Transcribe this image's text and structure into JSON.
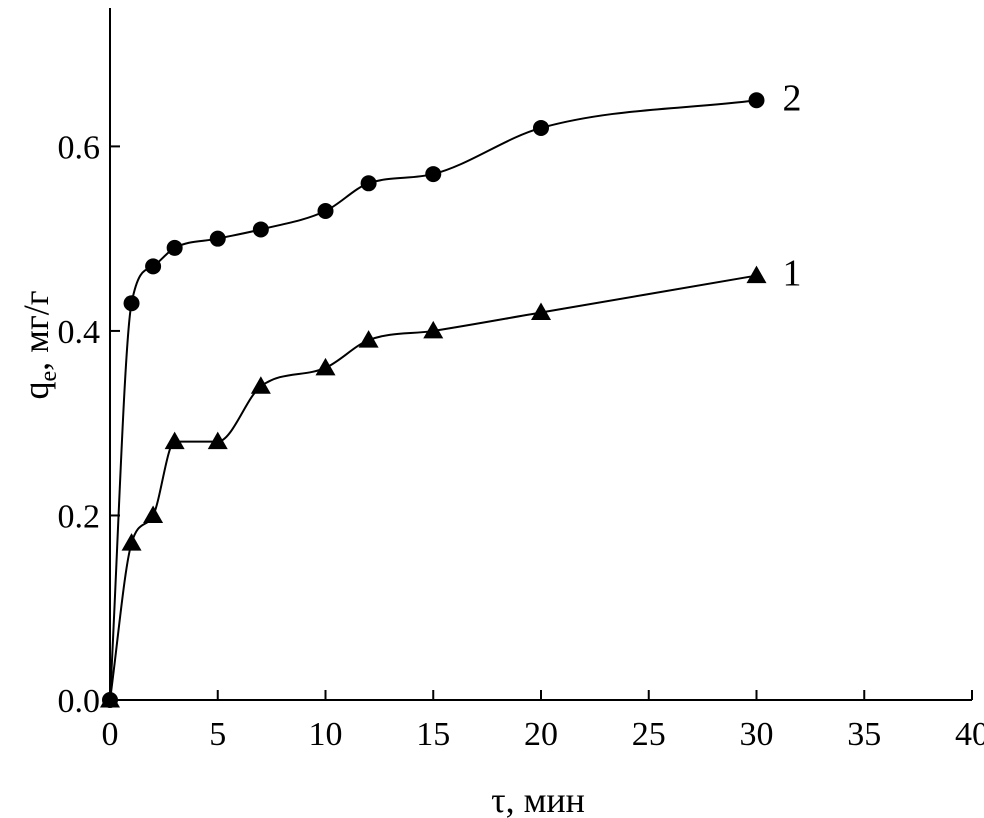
{
  "chart_data": {
    "type": "line",
    "xlabel": "τ, мин",
    "ylabel_main": "q",
    "ylabel_sub": "e",
    "ylabel_rest": ", мг/г",
    "xlim": [
      0,
      40
    ],
    "ylim": [
      0,
      0.75
    ],
    "x_ticks": [
      0,
      5,
      10,
      15,
      20,
      25,
      30,
      35,
      40
    ],
    "x_tick_labels": [
      "0",
      "5",
      "10",
      "15",
      "20",
      "25",
      "30",
      "35",
      "40"
    ],
    "y_ticks": [
      0,
      0.2,
      0.4,
      0.6
    ],
    "y_tick_labels": [
      "0.0",
      "0.2",
      "0.4",
      "0.6"
    ],
    "grid": false,
    "series": [
      {
        "name": "1",
        "marker": "triangle",
        "x": [
          0,
          1,
          2,
          3,
          5,
          7,
          10,
          12,
          15,
          20,
          30
        ],
        "y": [
          0,
          0.17,
          0.2,
          0.28,
          0.28,
          0.34,
          0.36,
          0.39,
          0.4,
          0.42,
          0.46
        ]
      },
      {
        "name": "2",
        "marker": "circle",
        "x": [
          0,
          1,
          2,
          3,
          5,
          7,
          10,
          12,
          15,
          20,
          30
        ],
        "y": [
          0,
          0.43,
          0.47,
          0.49,
          0.5,
          0.51,
          0.53,
          0.56,
          0.57,
          0.62,
          0.65
        ]
      }
    ]
  }
}
